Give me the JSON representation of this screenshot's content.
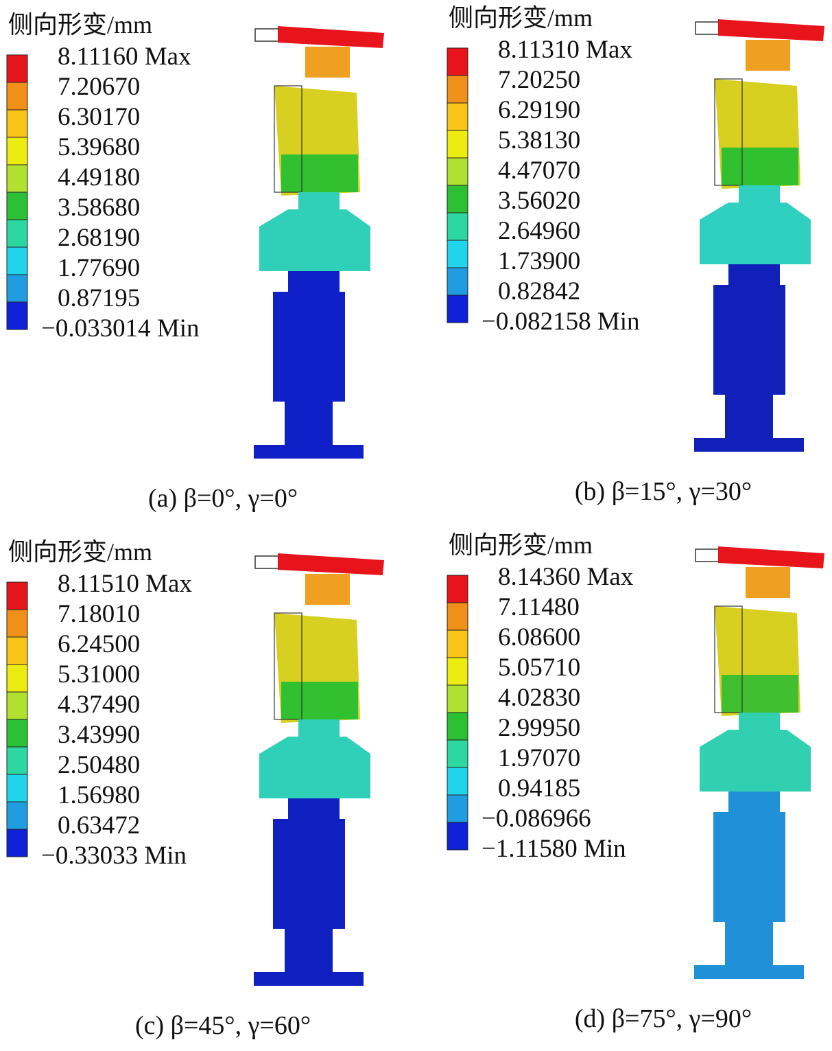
{
  "panels": [
    {
      "legend_title": "侧向形变/mm",
      "legend_labels": [
        "8.11160 Max",
        "7.20670",
        "6.30170",
        "5.39680",
        "4.49180",
        "3.58680",
        "2.68190",
        "1.77690",
        "0.87195",
        "−0.033014 Min"
      ],
      "caption": "(a) β=0°, γ=0°"
    },
    {
      "legend_title": "侧向形变/mm",
      "legend_labels": [
        "8.11310 Max",
        "7.20250",
        "6.29190",
        "5.38130",
        "4.47070",
        "3.56020",
        "2.64960",
        "1.73900",
        "0.82842",
        "−0.082158 Min"
      ],
      "caption": "(b) β=15°, γ=30°"
    },
    {
      "legend_title": "侧向形变/mm",
      "legend_labels": [
        "8.11510 Max",
        "7.18010",
        "6.24500",
        "5.31000",
        "4.37490",
        "3.43990",
        "2.50480",
        "1.56980",
        "0.63472",
        "−0.33033 Min"
      ],
      "caption": "(c) β=45°, γ=60°"
    },
    {
      "legend_title": "侧向形变/mm",
      "legend_labels": [
        "8.14360 Max",
        "7.11480",
        "6.08600",
        "5.05710",
        "4.02830",
        "2.99950",
        "1.97070",
        "0.94185",
        "−0.086966",
        "−1.11580 Min"
      ],
      "caption": "(d) β=75°, γ=90°"
    }
  ]
}
